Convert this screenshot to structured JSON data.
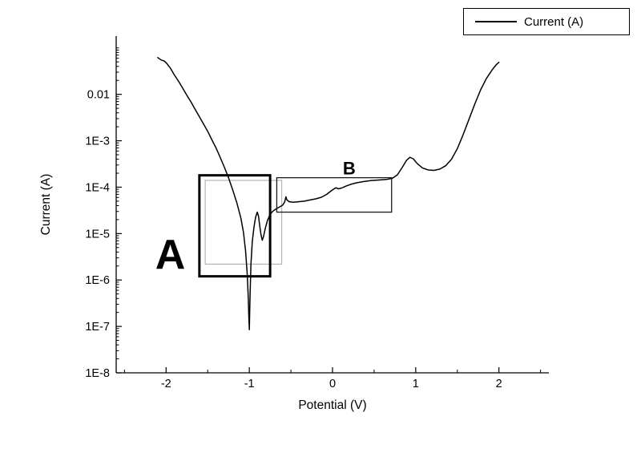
{
  "chart_data": {
    "type": "line",
    "title": "",
    "xlabel": "Potential (V)",
    "ylabel": "Current (A)",
    "x_ticks": [
      -2,
      -1,
      0,
      1,
      2
    ],
    "xlim": [
      -2.6,
      2.6
    ],
    "ylim": [
      1e-08,
      0.18
    ],
    "y_scale": "log",
    "y_ticks": [
      {
        "value": 0.01,
        "label": "0.01"
      },
      {
        "value": 0.001,
        "label": "1E-3"
      },
      {
        "value": 0.0001,
        "label": "1E-4"
      },
      {
        "value": 1e-05,
        "label": "1E-5"
      },
      {
        "value": 1e-06,
        "label": "1E-6"
      },
      {
        "value": 1e-07,
        "label": "1E-7"
      },
      {
        "value": 1e-08,
        "label": "1E-8"
      }
    ],
    "legend": {
      "position": "top-right",
      "entries": [
        {
          "label": "Current (A)",
          "line_color": "#000000"
        }
      ]
    },
    "series": [
      {
        "name": "Current (A)",
        "color": "#000000",
        "points": [
          [
            -2.1,
            0.062
          ],
          [
            -2.06,
            0.055
          ],
          [
            -2.02,
            0.052
          ],
          [
            -1.99,
            0.046
          ],
          [
            -1.95,
            0.037
          ],
          [
            -1.9,
            0.026
          ],
          [
            -1.85,
            0.019
          ],
          [
            -1.8,
            0.0135
          ],
          [
            -1.75,
            0.0095
          ],
          [
            -1.7,
            0.0068
          ],
          [
            -1.65,
            0.0047
          ],
          [
            -1.6,
            0.0033
          ],
          [
            -1.55,
            0.0023
          ],
          [
            -1.5,
            0.0016
          ],
          [
            -1.45,
            0.00105
          ],
          [
            -1.4,
            0.0007
          ],
          [
            -1.35,
            0.00044
          ],
          [
            -1.3,
            0.00027
          ],
          [
            -1.25,
            0.00016
          ],
          [
            -1.2,
            8.8e-05
          ],
          [
            -1.15,
            4.6e-05
          ],
          [
            -1.1,
            2.1e-05
          ],
          [
            -1.07,
            1.05e-05
          ],
          [
            -1.045,
            4.2e-06
          ],
          [
            -1.025,
            1.3e-06
          ],
          [
            -1.012,
            4e-07
          ],
          [
            -1.005,
            1.5e-07
          ],
          [
            -1.0,
            8.5e-08
          ],
          [
            -0.997,
            1.6e-07
          ],
          [
            -0.99,
            5.5e-07
          ],
          [
            -0.98,
            2.2e-06
          ],
          [
            -0.965,
            6.5e-06
          ],
          [
            -0.945,
            1.35e-05
          ],
          [
            -0.925,
            2.2e-05
          ],
          [
            -0.905,
            2.9e-05
          ],
          [
            -0.89,
            2.4e-05
          ],
          [
            -0.875,
            1.5e-05
          ],
          [
            -0.86,
            9.5e-06
          ],
          [
            -0.845,
            7.2e-06
          ],
          [
            -0.83,
            8.5e-06
          ],
          [
            -0.81,
            1.25e-05
          ],
          [
            -0.785,
            1.85e-05
          ],
          [
            -0.755,
            2.5e-05
          ],
          [
            -0.72,
            3e-05
          ],
          [
            -0.68,
            3.4e-05
          ],
          [
            -0.64,
            3.7e-05
          ],
          [
            -0.6,
            4.1e-05
          ],
          [
            -0.575,
            4.8e-05
          ],
          [
            -0.56,
            6.2e-05
          ],
          [
            -0.548,
            5.3e-05
          ],
          [
            -0.52,
            4.85e-05
          ],
          [
            -0.47,
            4.75e-05
          ],
          [
            -0.41,
            4.85e-05
          ],
          [
            -0.34,
            5e-05
          ],
          [
            -0.27,
            5.3e-05
          ],
          [
            -0.2,
            5.6e-05
          ],
          [
            -0.13,
            6.1e-05
          ],
          [
            -0.07,
            7e-05
          ],
          [
            -0.03,
            8e-05
          ],
          [
            0.01,
            9e-05
          ],
          [
            0.04,
            9.7e-05
          ],
          [
            0.07,
            9.2e-05
          ],
          [
            0.11,
            9.6e-05
          ],
          [
            0.16,
            0.000105
          ],
          [
            0.22,
            0.000115
          ],
          [
            0.29,
            0.000124
          ],
          [
            0.37,
            0.000132
          ],
          [
            0.46,
            0.000138
          ],
          [
            0.56,
            0.000143
          ],
          [
            0.65,
            0.000147
          ],
          [
            0.72,
            0.000155
          ],
          [
            0.78,
            0.000185
          ],
          [
            0.84,
            0.00027
          ],
          [
            0.89,
            0.00038
          ],
          [
            0.93,
            0.00044
          ],
          [
            0.97,
            0.00041
          ],
          [
            1.02,
            0.00032
          ],
          [
            1.08,
            0.00026
          ],
          [
            1.15,
            0.000235
          ],
          [
            1.22,
            0.00023
          ],
          [
            1.29,
            0.000245
          ],
          [
            1.36,
            0.00029
          ],
          [
            1.43,
            0.0004
          ],
          [
            1.5,
            0.00068
          ],
          [
            1.57,
            0.00135
          ],
          [
            1.64,
            0.0029
          ],
          [
            1.71,
            0.0062
          ],
          [
            1.78,
            0.0125
          ],
          [
            1.85,
            0.022
          ],
          [
            1.92,
            0.034
          ],
          [
            1.97,
            0.044
          ],
          [
            2.0,
            0.049
          ]
        ]
      }
    ],
    "annotations": {
      "boxes": [
        {
          "id": "zoom-box-a-inner",
          "x1": -1.53,
          "x2": -0.61,
          "y1": 2.2e-06,
          "y2": 0.00014,
          "stroke": "#a8a8a8",
          "width": 1
        },
        {
          "id": "zoom-box-a-thick",
          "x1": -1.6,
          "x2": -0.75,
          "y1": 1.2e-06,
          "y2": 0.00018,
          "stroke": "#000000",
          "width": 3
        },
        {
          "id": "zoom-box-b",
          "x1": -0.67,
          "x2": 0.71,
          "y1": 2.9e-05,
          "y2": 0.00016,
          "stroke": "#1a1a1a",
          "width": 1.3
        }
      ],
      "labels": [
        {
          "id": "region-label-a",
          "text": "A",
          "x": -1.95,
          "y": 1.76e-06,
          "font_size": 52,
          "bold": true
        },
        {
          "id": "region-label-b",
          "text": "B",
          "x": 0.2,
          "y": 0.00019,
          "font_size": 22,
          "bold": true
        }
      ]
    }
  }
}
